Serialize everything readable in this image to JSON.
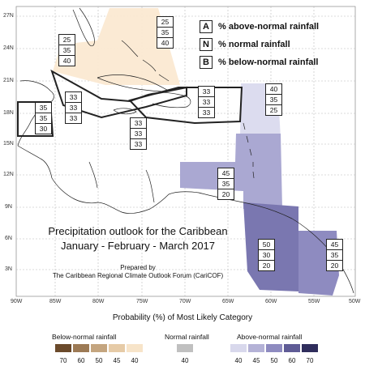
{
  "key": {
    "A": {
      "letter": "A",
      "text": "% above-normal rainfall"
    },
    "N": {
      "letter": "N",
      "text": "% normal rainfall"
    },
    "B": {
      "letter": "B",
      "text": "% below-normal rainfall"
    }
  },
  "lat_labels": [
    "27N",
    "24N",
    "21N",
    "18N",
    "15N",
    "12N",
    "9N",
    "6N",
    "3N"
  ],
  "lon_labels": [
    "90W",
    "85W",
    "80W",
    "75W",
    "70W",
    "65W",
    "60W",
    "55W",
    "50W"
  ],
  "title_line1": "Precipitation outlook for the Caribbean",
  "title_line2": "January - February - March 2017",
  "prepared_line1": "Prepared by",
  "prepared_line2": "The Caribbean Regional Climate Outlook Forum (CariCOF)",
  "subtitle": "Probability (%) of Most Likely Category",
  "colorbar": {
    "below_label": "Below-normal rainfall",
    "normal_label": "Normal rainfall",
    "above_label": "Above-normal rainfall",
    "below_values": [
      "70",
      "60",
      "50",
      "45",
      "40"
    ],
    "normal_values": [
      "40"
    ],
    "above_values": [
      "40",
      "45",
      "50",
      "60",
      "70"
    ],
    "below_colors": [
      "#6b4a2b",
      "#9c7a55",
      "#c4a57f",
      "#e6cba7",
      "#f7e4c9"
    ],
    "normal_colors": [
      "#c0c0c0"
    ],
    "above_colors": [
      "#d8d8ec",
      "#b4b2d6",
      "#8e8bc0",
      "#5f5c96",
      "#2f2d5c"
    ]
  },
  "probability_boxes": [
    {
      "A": "25",
      "N": "35",
      "B": "40"
    },
    {
      "A": "25",
      "N": "35",
      "B": "40"
    },
    {
      "A": "35",
      "N": "35",
      "B": "30"
    },
    {
      "A": "33",
      "N": "33",
      "B": "33"
    },
    {
      "A": "33",
      "N": "33",
      "B": "33"
    },
    {
      "A": "33",
      "N": "33",
      "B": "33"
    },
    {
      "A": "40",
      "N": "35",
      "B": "25"
    },
    {
      "A": "45",
      "N": "35",
      "B": "20"
    },
    {
      "A": "50",
      "N": "30",
      "B": "20"
    },
    {
      "A": "45",
      "N": "35",
      "B": "20"
    }
  ]
}
